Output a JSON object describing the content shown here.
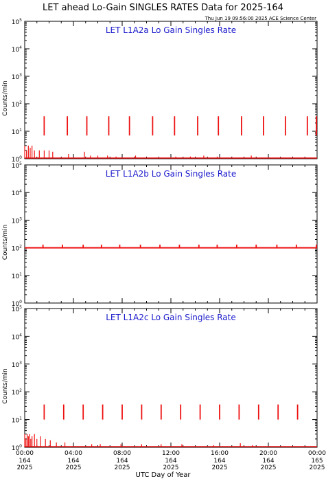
{
  "page": {
    "title": "LET ahead Lo-Gain SINGLES RATES Data for 2025-164",
    "timestamp": "Thu Jun 19 09:56:00 2025 ACE Science Center",
    "xlabel": "UTC Day of Year"
  },
  "colors": {
    "data": "#ee1111",
    "panel_title": "#1a1acc",
    "axis": "#000000"
  },
  "chart_data": [
    {
      "type": "line",
      "title": "LET L1A2a Lo Gain Singles Rate",
      "ylabel": "Counts/min",
      "yscale": "log",
      "ylim": [
        1,
        100000
      ],
      "yticks": [
        "10^0",
        "10^1",
        "10^2",
        "10^3",
        "10^4",
        "10^5"
      ],
      "xlim": [
        0,
        24
      ],
      "baseline": 1,
      "spike_times": [
        1.6,
        3.5,
        5.1,
        6.9,
        8.6,
        10.5,
        12.3,
        14.2,
        15.9,
        17.8,
        19.6,
        21.4,
        23.2,
        24.0
      ],
      "spike_range": [
        7,
        35
      ],
      "noise": [
        {
          "t": 0.0,
          "v": 3
        },
        {
          "t": 0.15,
          "v": 2
        },
        {
          "t": 0.3,
          "v": 3
        },
        {
          "t": 0.45,
          "v": 2.5
        },
        {
          "t": 0.6,
          "v": 3
        },
        {
          "t": 0.8,
          "v": 2
        },
        {
          "t": 1.2,
          "v": 2
        },
        {
          "t": 1.6,
          "v": 2
        },
        {
          "t": 2.0,
          "v": 2
        },
        {
          "t": 2.3,
          "v": 1.8
        },
        {
          "t": 3.6,
          "v": 1.5
        },
        {
          "t": 4.9,
          "v": 1.8
        },
        {
          "t": 5.4,
          "v": 1.3
        },
        {
          "t": 6.0,
          "v": 1.3
        },
        {
          "t": 6.8,
          "v": 1.3
        },
        {
          "t": 7.5,
          "v": 1.2
        },
        {
          "t": 9.1,
          "v": 1.3
        },
        {
          "t": 12.4,
          "v": 1.2
        },
        {
          "t": 13.6,
          "v": 1.2
        },
        {
          "t": 14.7,
          "v": 1.3
        },
        {
          "t": 15.8,
          "v": 1.2
        },
        {
          "t": 18.6,
          "v": 1.3
        }
      ]
    },
    {
      "type": "line",
      "title": "LET L1A2b Lo Gain Singles Rate",
      "ylabel": "Counts/min",
      "yscale": "log",
      "ylim": [
        1,
        100000
      ],
      "yticks": [
        "10^0",
        "10^1",
        "10^2",
        "10^3",
        "10^4",
        "10^5"
      ],
      "xlim": [
        0,
        24
      ],
      "baseline": 100,
      "spike_times": [
        1.5,
        3.1,
        4.8,
        6.3,
        7.8,
        9.5,
        11.1,
        12.7,
        14.3,
        15.8,
        17.4,
        19.0,
        20.7,
        22.3,
        24.0
      ],
      "spike_range": [
        100,
        130
      ],
      "noise": []
    },
    {
      "type": "line",
      "title": "LET L1A2c Lo Gain Singles Rate",
      "ylabel": "Counts/min",
      "yscale": "log",
      "ylim": [
        1,
        100000
      ],
      "yticks": [
        "10^0",
        "10^1",
        "10^2",
        "10^3",
        "10^4",
        "10^5"
      ],
      "xlim": [
        0,
        24
      ],
      "baseline": 1,
      "spike_times": [
        1.6,
        3.2,
        4.8,
        6.4,
        8.0,
        9.6,
        11.2,
        12.8,
        14.4,
        16.0,
        17.6,
        19.2,
        20.8,
        22.4
      ],
      "spike_range": [
        10,
        35
      ],
      "noise": [
        {
          "t": 0.0,
          "v": 3
        },
        {
          "t": 0.1,
          "v": 2
        },
        {
          "t": 0.2,
          "v": 3
        },
        {
          "t": 0.3,
          "v": 2.5
        },
        {
          "t": 0.4,
          "v": 3
        },
        {
          "t": 0.5,
          "v": 2
        },
        {
          "t": 0.6,
          "v": 2.5
        },
        {
          "t": 0.8,
          "v": 3
        },
        {
          "t": 1.0,
          "v": 2
        },
        {
          "t": 1.3,
          "v": 2.5
        },
        {
          "t": 1.7,
          "v": 2
        },
        {
          "t": 2.1,
          "v": 1.8
        },
        {
          "t": 2.6,
          "v": 1.5
        },
        {
          "t": 3.3,
          "v": 1.5
        },
        {
          "t": 5.5,
          "v": 1.3
        },
        {
          "t": 6.2,
          "v": 1.3
        },
        {
          "t": 7.9,
          "v": 1.3
        },
        {
          "t": 9.6,
          "v": 1.3
        },
        {
          "t": 11.2,
          "v": 1.3
        },
        {
          "t": 12.9,
          "v": 1.3
        },
        {
          "t": 15.5,
          "v": 1.2
        },
        {
          "t": 17.7,
          "v": 1.4
        },
        {
          "t": 18.7,
          "v": 1.2
        }
      ]
    }
  ],
  "x_axis": {
    "ticks": [
      {
        "t": 0,
        "time": "00:00",
        "day": "164",
        "year": "2025"
      },
      {
        "t": 4,
        "time": "04:00",
        "day": "164",
        "year": "2025"
      },
      {
        "t": 8,
        "time": "08:00",
        "day": "164",
        "year": "2025"
      },
      {
        "t": 12,
        "time": "12:00",
        "day": "164",
        "year": "2025"
      },
      {
        "t": 16,
        "time": "16:00",
        "day": "164",
        "year": "2025"
      },
      {
        "t": 20,
        "time": "20:00",
        "day": "164",
        "year": "2025"
      },
      {
        "t": 24,
        "time": "00:00",
        "day": "165",
        "year": "2025"
      }
    ]
  }
}
